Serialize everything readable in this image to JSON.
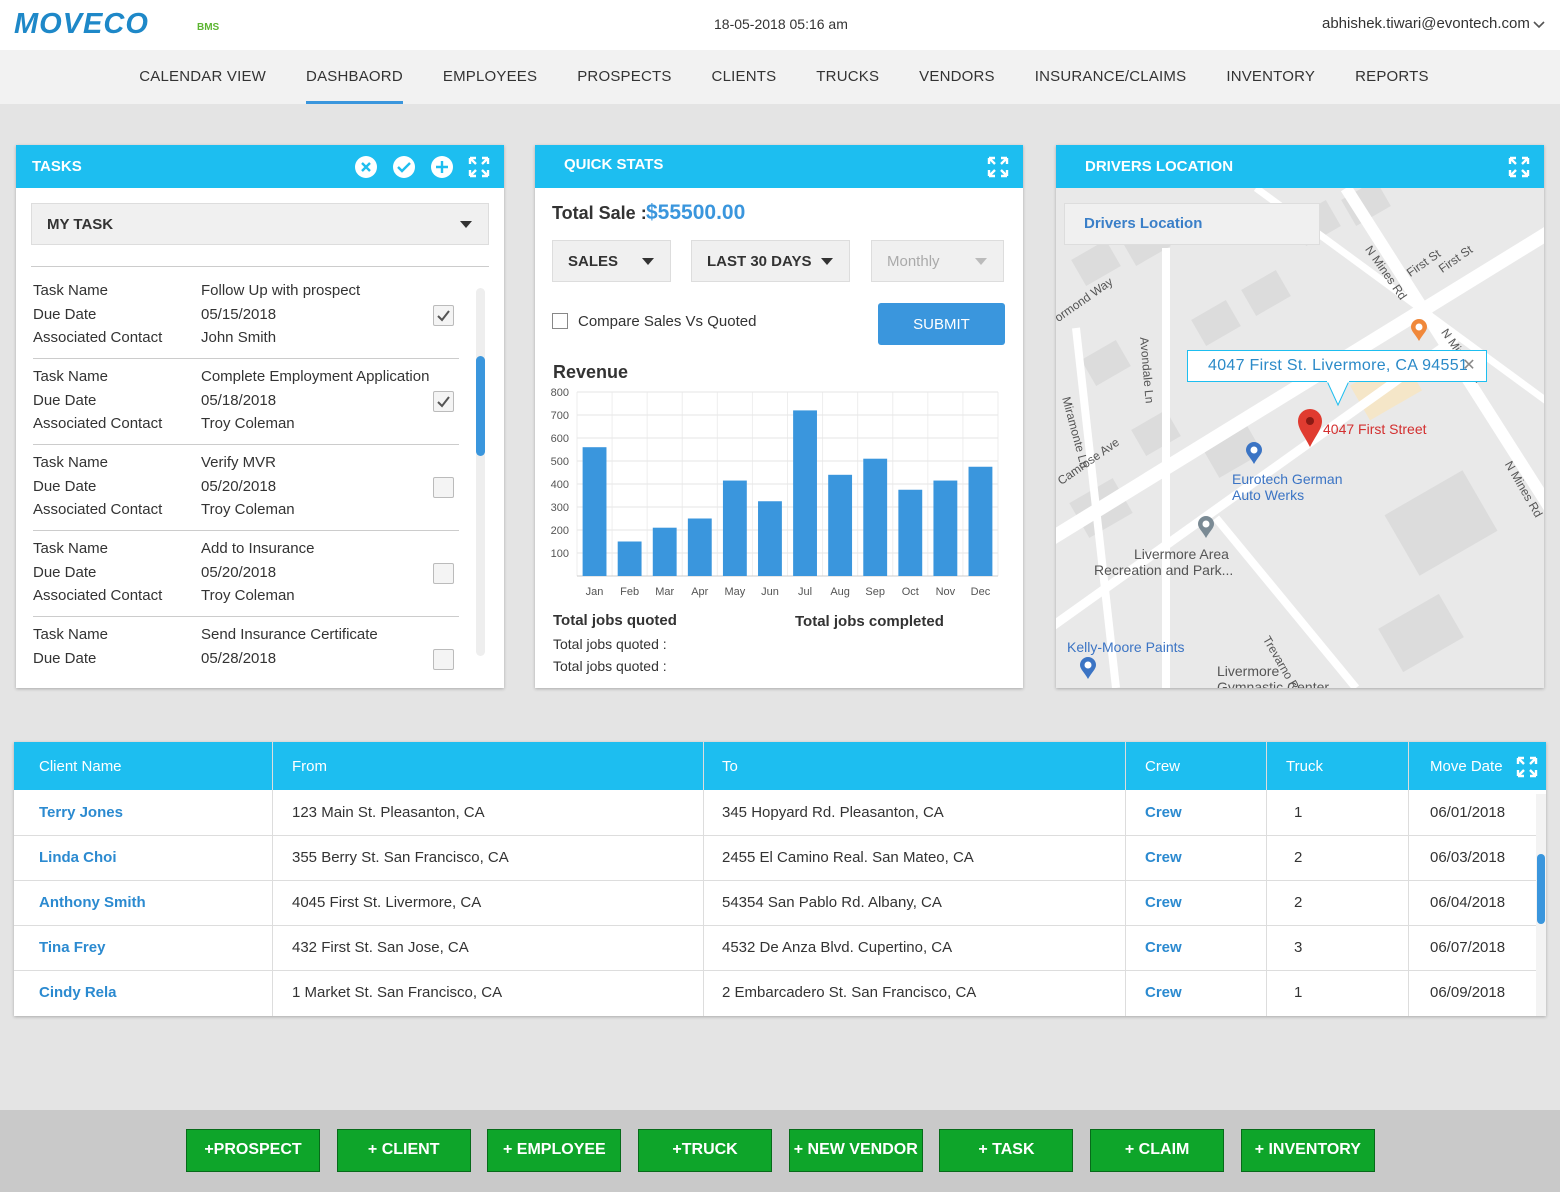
{
  "header": {
    "logo": "MOVECO",
    "logo_suffix": "BMS",
    "datetime": "18-05-2018 05:16 am",
    "user": "abhishek.tiwari@evontech.com"
  },
  "nav": {
    "items": [
      "CALENDAR VIEW",
      "DASHBAORD",
      "EMPLOYEES",
      "PROSPECTS",
      "CLIENTS",
      "TRUCKS",
      "VENDORS",
      "INSURANCE/CLAIMS",
      "INVENTORY",
      "REPORTS"
    ],
    "active": 1
  },
  "tasks": {
    "title": "TASKS",
    "filter": "MY TASK",
    "labels": [
      "Task Name",
      "Due Date",
      "Associated Contact"
    ],
    "items": [
      {
        "name": "Follow Up with prospect",
        "due": "05/15/2018",
        "contact": "John Smith",
        "done": true
      },
      {
        "name": "Complete Employment Application",
        "due": "05/18/2018",
        "contact": "Troy Coleman",
        "done": true
      },
      {
        "name": "Verify MVR",
        "due": "05/20/2018",
        "contact": "Troy Coleman",
        "done": false
      },
      {
        "name": "Add to Insurance",
        "due": "05/20/2018",
        "contact": "Troy Coleman",
        "done": false
      },
      {
        "name": "Send Insurance Certificate",
        "due": "05/28/2018",
        "done": false
      }
    ]
  },
  "quick_stats": {
    "title": "QUICK STATS",
    "total_sale_label": "Total Sale :",
    "total_sale": "$55500.00",
    "selects": [
      "SALES",
      "LAST 30 DAYS",
      "Monthly"
    ],
    "compare": "Compare Sales Vs Quoted",
    "submit": "SUBMIT",
    "jobs_quoted": "Total jobs quoted",
    "jobs_completed": "Total jobs completed",
    "jobs_rows": [
      "Total jobs quoted :",
      "Total jobs quoted :"
    ]
  },
  "chart_data": {
    "type": "bar",
    "title": "Revenue",
    "categories": [
      "Jan",
      "Feb",
      "Mar",
      "Apr",
      "May",
      "Jun",
      "Jul",
      "Aug",
      "Sep",
      "Oct",
      "Nov",
      "Dec"
    ],
    "values": [
      560,
      150,
      210,
      250,
      415,
      325,
      720,
      440,
      510,
      375,
      415,
      475
    ],
    "color": "#3a96dd",
    "ylim": [
      0,
      800
    ],
    "yticks": [
      100,
      200,
      300,
      400,
      500,
      600,
      700,
      800
    ],
    "grid": true
  },
  "map": {
    "title": "DRIVERS LOCATION",
    "search": "Drivers Location",
    "popup": "4047 First St. Livermore, CA 94551",
    "pin_label": "4047 First Street",
    "streets": [
      "N Mines Rd",
      "First St",
      "First St",
      "N Mines Rd",
      "N Mines Rd",
      "Avondale Ln",
      "Miramonte Ln",
      "Camrose Ave",
      "Trevarno Rd",
      "ormond Way"
    ],
    "places": [
      "Eurotech German",
      "Auto Werks",
      "Livermore Area",
      "Recreation and Park...",
      "Kelly-Moore Paints",
      "Livermore",
      "Gymnastic Center"
    ]
  },
  "table": {
    "headers": [
      "Client Name",
      "From",
      "To",
      "Crew",
      "Truck",
      "Move Date"
    ],
    "rows": [
      [
        "Terry Jones",
        "123 Main St. Pleasanton, CA",
        "345 Hopyard Rd. Pleasanton, CA",
        "Crew",
        "1",
        "06/01/2018"
      ],
      [
        "Linda Choi",
        "355 Berry St. San Francisco, CA",
        "2455 El Camino Real. San Mateo, CA",
        "Crew",
        "2",
        "06/03/2018"
      ],
      [
        "Anthony Smith",
        "4045 First St. Livermore, CA",
        "54354 San Pablo Rd. Albany, CA",
        "Crew",
        "2",
        "06/04/2018"
      ],
      [
        "Tina Frey",
        "432 First St. San Jose, CA",
        "4532 De Anza Blvd. Cupertino, CA",
        "Crew",
        "3",
        "06/07/2018"
      ],
      [
        "Cindy Rela",
        "1 Market St. San Francisco, CA",
        "2 Embarcadero St. San Francisco, CA",
        "Crew",
        "1",
        "06/09/2018"
      ]
    ]
  },
  "actions": [
    "+PROSPECT",
    "+ CLIENT",
    "+ EMPLOYEE",
    "+TRUCK",
    "+ NEW VENDOR",
    "+ TASK",
    "+ CLAIM",
    "+ INVENTORY"
  ]
}
